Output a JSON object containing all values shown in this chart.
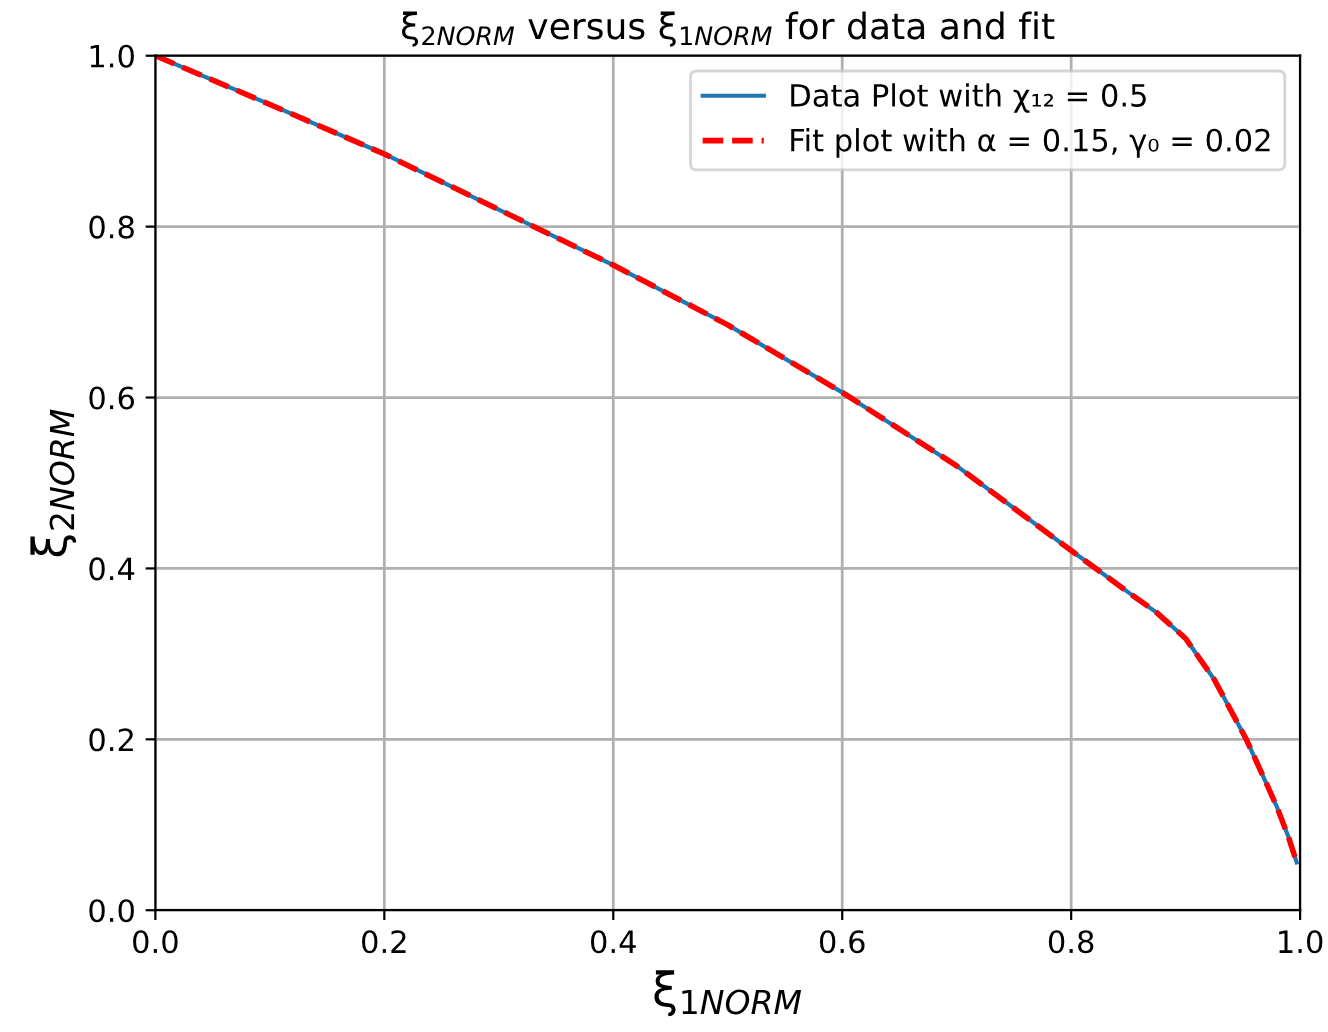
{
  "chart_data": {
    "type": "line",
    "title": "ξ$_{2NORM}$ versus ξ$_{1NORM}$ for data and fit",
    "xlabel": "ξ$_{1NORM}$",
    "ylabel": "ξ$_{2NORM}$",
    "xlim": [
      0,
      1
    ],
    "ylim": [
      0,
      1
    ],
    "xticks": [
      {
        "value": 0,
        "label": "0.0"
      },
      0.2,
      0.4,
      0.6,
      0.8,
      {
        "value": 1,
        "label": "1.0"
      }
    ],
    "yticks": [
      {
        "value": 0,
        "label": "0.0"
      },
      0.2,
      0.4,
      0.6,
      0.8,
      {
        "value": 1,
        "label": "1.0"
      }
    ],
    "grid": true,
    "legend": "top right",
    "series": [
      {
        "name": "Data Plot with χ₁₂ = 0.5",
        "color": "#1f77b4",
        "line_style": "solid",
        "x": [
          0,
          0.1,
          0.2,
          0.3,
          0.4,
          0.5,
          0.6,
          0.7,
          0.8,
          0.85,
          0.875,
          0.9,
          0.925,
          0.953,
          0.97,
          0.98,
          0.99,
          0.997
        ],
        "values": [
          1,
          0.943,
          0.885,
          0.82,
          0.755,
          0.685,
          0.606,
          0.52,
          0.421,
          0.372,
          0.348,
          0.318,
          0.27,
          0.2,
          0.15,
          0.12,
          0.085,
          0.056
        ]
      },
      {
        "name": "Fit plot with α = 0.15, γ₀ = 0.02",
        "color": "#ff0000",
        "line_style": "dashed",
        "x": [
          0,
          0.1,
          0.2,
          0.3,
          0.4,
          0.5,
          0.6,
          0.7,
          0.8,
          0.85,
          0.875,
          0.9,
          0.925,
          0.953,
          0.97,
          0.98,
          0.99,
          0.997
        ],
        "values": [
          1,
          0.943,
          0.885,
          0.82,
          0.755,
          0.685,
          0.606,
          0.52,
          0.421,
          0.372,
          0.348,
          0.318,
          0.27,
          0.2,
          0.15,
          0.12,
          0.085,
          0.056
        ]
      }
    ]
  }
}
